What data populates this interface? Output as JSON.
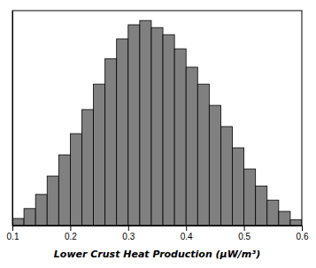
{
  "chart_data": {
    "type": "histogram",
    "bins": [
      0.1,
      0.12,
      0.14,
      0.16,
      0.18,
      0.2,
      0.22,
      0.24,
      0.26,
      0.28,
      0.3,
      0.32,
      0.34,
      0.36,
      0.38,
      0.4,
      0.42,
      0.44,
      0.46,
      0.48,
      0.5,
      0.52,
      0.54,
      0.56,
      0.58,
      0.6
    ],
    "values": [
      0.5,
      1.2,
      2.2,
      3.5,
      5.0,
      6.5,
      8.2,
      10.0,
      11.8,
      13.2,
      14.2,
      14.5,
      14.0,
      13.5,
      12.5,
      11.2,
      10.0,
      8.5,
      7.0,
      5.5,
      4.0,
      2.8,
      1.8,
      1.0,
      0.4
    ],
    "color": "#808080",
    "xlabel": "Lower Crust Heat Production (μW/m³)",
    "xlim": [
      0.1,
      0.6
    ],
    "ylim": [
      0,
      15.2
    ],
    "xticks": [
      0.1,
      0.2,
      0.3,
      0.4,
      0.5,
      0.6
    ],
    "tick_labels": "x"
  }
}
